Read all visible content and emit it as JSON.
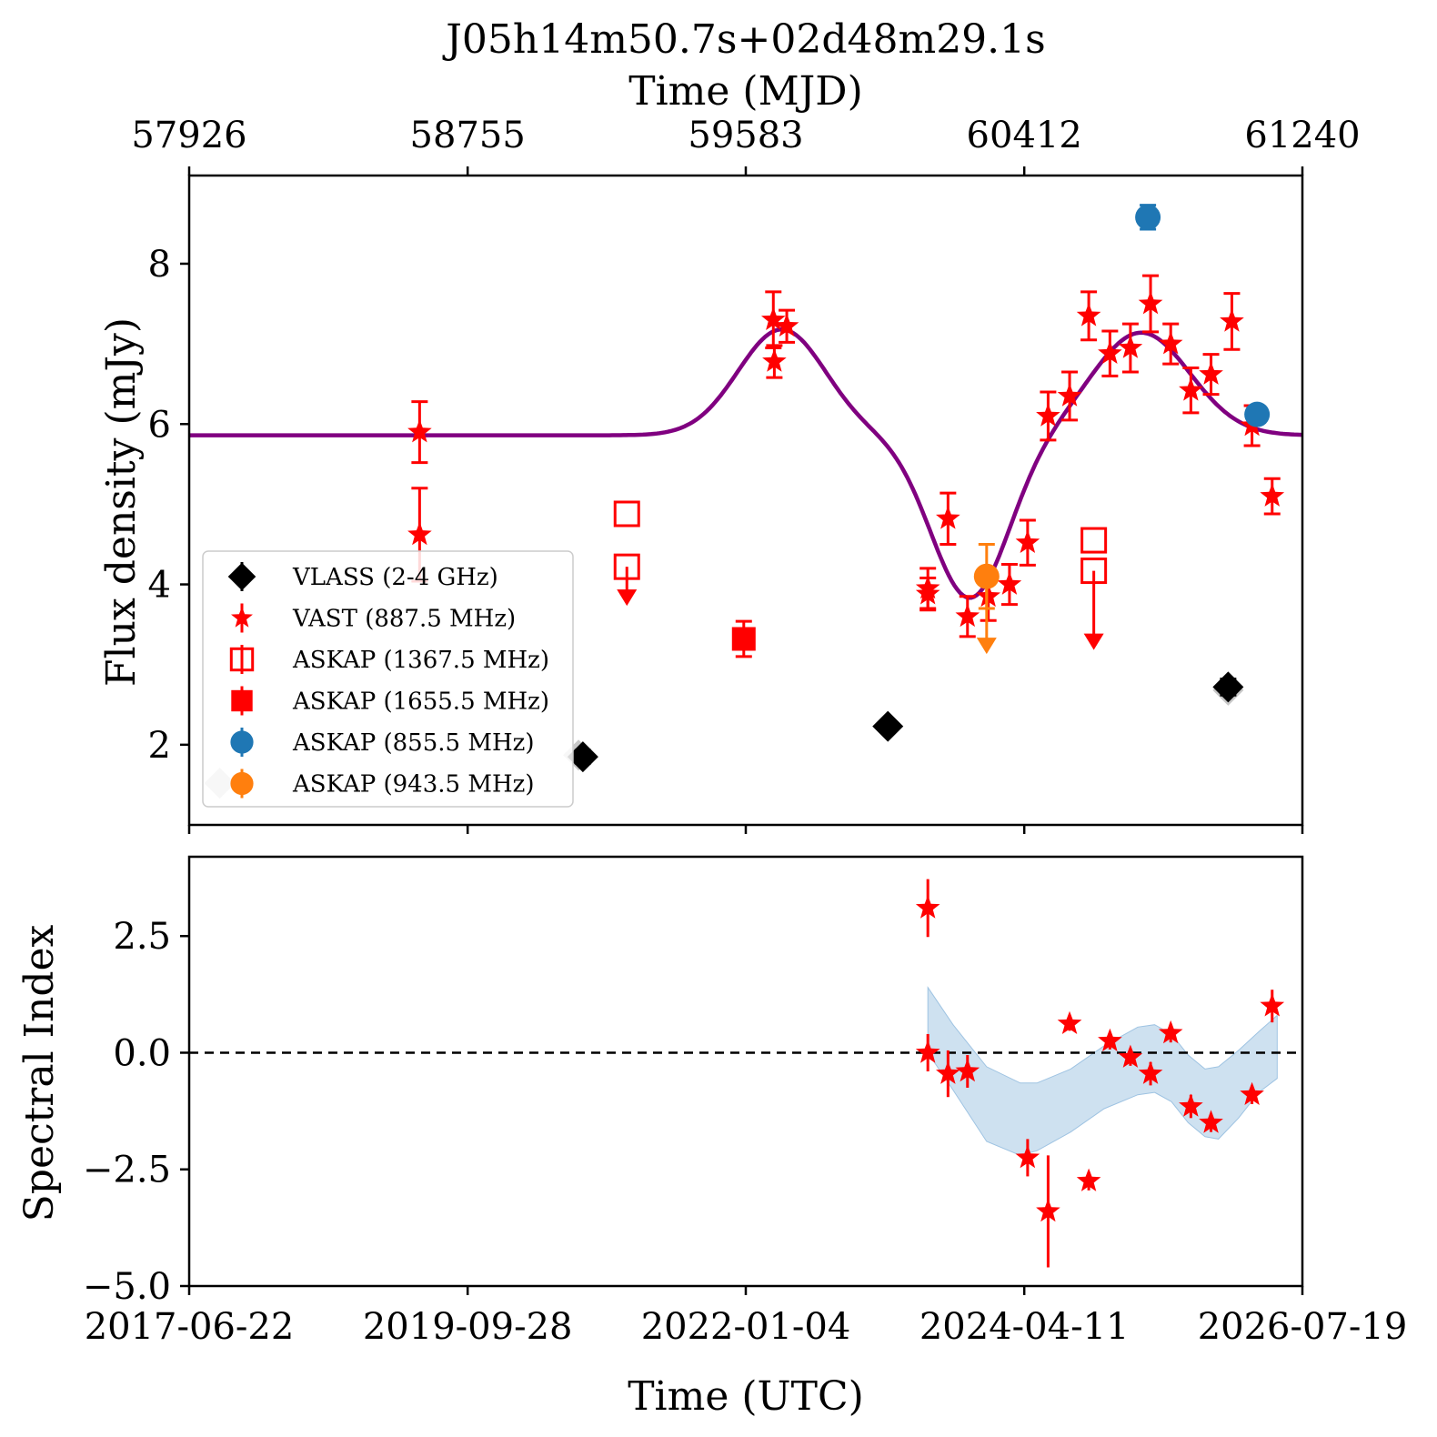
{
  "chart_data": [
    {
      "type": "scatter",
      "title": "J05h14m50.7s+02d48m29.1s",
      "top_xlabel": "Time (MJD)",
      "top_xticks": [
        "57926",
        "58755",
        "59583",
        "60412",
        "61240"
      ],
      "top_xtick_values": [
        57926,
        58755,
        59583,
        60412,
        61240
      ],
      "ylabel": "Flux density (mJy)",
      "yticks": [
        "2",
        "4",
        "6",
        "8"
      ],
      "ytick_values": [
        2,
        4,
        6,
        8
      ],
      "xlim_mjd": [
        57926,
        61240
      ],
      "ylim": [
        1.0,
        9.1
      ],
      "legend_position": "lower-left",
      "legend": [
        {
          "label": "VLASS (2-4 GHz)",
          "marker": "diamond",
          "color": "#000000",
          "filled": true
        },
        {
          "label": "VAST (887.5 MHz)",
          "marker": "star",
          "color": "#ff0000",
          "filled": true
        },
        {
          "label": "ASKAP (1367.5 MHz)",
          "marker": "square",
          "color": "#ff0000",
          "filled": false
        },
        {
          "label": "ASKAP (1655.5 MHz)",
          "marker": "square",
          "color": "#ff0000",
          "filled": true
        },
        {
          "label": "ASKAP (855.5 MHz)",
          "marker": "circle",
          "color": "#1f77b4",
          "filled": true
        },
        {
          "label": "ASKAP (943.5 MHz)",
          "marker": "circle",
          "color": "#ff7f0e",
          "filled": true
        }
      ],
      "series": [
        {
          "name": "VLASS (2-4 GHz)",
          "marker": "diamond",
          "color": "#000000",
          "points": [
            {
              "x": 59098,
              "y": 1.85,
              "err": 0.08
            },
            {
              "x": 60006,
              "y": 2.23,
              "err": 0.05
            },
            {
              "x": 61019,
              "y": 2.72,
              "err": 0.1
            }
          ],
          "ghost_points": [
            {
              "x": 58017,
              "y": 1.52,
              "err": 0.05
            },
            {
              "x": 59085,
              "y": 1.87,
              "err": 0.05
            },
            {
              "x": 61019,
              "y": 2.68,
              "err": 0.05
            }
          ],
          "ghost_color": "#c8c8c8"
        },
        {
          "name": "VAST (887.5 MHz)",
          "marker": "star",
          "color": "#ff0000",
          "points": [
            {
              "x": 58612,
              "y": 5.9,
              "err": 0.38
            },
            {
              "x": 58612,
              "y": 4.62,
              "err": 0.58
            },
            {
              "x": 59665,
              "y": 7.3,
              "err": 0.35
            },
            {
              "x": 59668,
              "y": 6.78,
              "err": 0.2
            },
            {
              "x": 59705,
              "y": 7.22,
              "err": 0.2
            },
            {
              "x": 60125,
              "y": 3.95,
              "err": 0.25
            },
            {
              "x": 60125,
              "y": 3.88,
              "err": 0.2
            },
            {
              "x": 60185,
              "y": 4.82,
              "err": 0.32
            },
            {
              "x": 60243,
              "y": 3.6,
              "err": 0.25
            },
            {
              "x": 60305,
              "y": 3.85,
              "err": 0.3
            },
            {
              "x": 60368,
              "y": 4.0,
              "err": 0.25
            },
            {
              "x": 60422,
              "y": 4.52,
              "err": 0.28
            },
            {
              "x": 60483,
              "y": 6.1,
              "err": 0.3
            },
            {
              "x": 60547,
              "y": 6.35,
              "err": 0.3
            },
            {
              "x": 60604,
              "y": 7.35,
              "err": 0.3
            },
            {
              "x": 60667,
              "y": 6.88,
              "err": 0.28
            },
            {
              "x": 60728,
              "y": 6.95,
              "err": 0.3
            },
            {
              "x": 60788,
              "y": 7.5,
              "err": 0.35
            },
            {
              "x": 60848,
              "y": 7.0,
              "err": 0.25
            },
            {
              "x": 60908,
              "y": 6.42,
              "err": 0.28
            },
            {
              "x": 60968,
              "y": 6.62,
              "err": 0.25
            },
            {
              "x": 61030,
              "y": 7.28,
              "err": 0.35
            },
            {
              "x": 61090,
              "y": 5.98,
              "err": 0.25
            },
            {
              "x": 61150,
              "y": 5.1,
              "err": 0.22
            }
          ]
        },
        {
          "name": "ASKAP (1367.5 MHz)",
          "marker": "square-open",
          "color": "#ff0000",
          "points": [
            {
              "x": 59229,
              "y": 4.88,
              "upper_limit": false
            },
            {
              "x": 59229,
              "y": 4.22,
              "upper_limit": true,
              "arrow_to": 3.8
            },
            {
              "x": 60619,
              "y": 4.55,
              "upper_limit": false
            },
            {
              "x": 60619,
              "y": 4.17,
              "upper_limit": true,
              "arrow_to": 3.25
            }
          ]
        },
        {
          "name": "ASKAP (1655.5 MHz)",
          "marker": "square",
          "color": "#ff0000",
          "points": [
            {
              "x": 59577,
              "y": 3.32,
              "err": 0.22
            }
          ]
        },
        {
          "name": "ASKAP (855.5 MHz)",
          "marker": "circle",
          "color": "#1f77b4",
          "points": [
            {
              "x": 60780,
              "y": 8.58,
              "err": 0.15
            },
            {
              "x": 61105,
              "y": 6.12,
              "err": 0.1
            }
          ]
        },
        {
          "name": "ASKAP (943.5 MHz)",
          "marker": "circle",
          "color": "#ff7f0e",
          "points": [
            {
              "x": 60300,
              "y": 4.1,
              "err": 0.4,
              "upper_limit": true,
              "arrow_to": 3.2
            }
          ]
        }
      ],
      "model_curve": {
        "color": "#800080",
        "baseline": 5.86,
        "components": [
          {
            "center": 59690,
            "width": 130,
            "amp": 1.32
          },
          {
            "center": 60250,
            "width": 115,
            "amp": -2.03
          },
          {
            "center": 60760,
            "width": 145,
            "amp": 1.28
          }
        ]
      }
    },
    {
      "type": "scatter",
      "xlabel": "Time (UTC)",
      "xticks": [
        "2017-06-22",
        "2019-09-28",
        "2022-01-04",
        "2024-04-11",
        "2026-07-19"
      ],
      "xtick_values_mjd": [
        57926,
        58755,
        59583,
        60412,
        61240
      ],
      "ylabel": "Spectral Index",
      "yticks": [
        "2.5",
        "0.0",
        "−2.5",
        "−5.0"
      ],
      "ytick_values": [
        2.5,
        0.0,
        -2.5,
        -5.0
      ],
      "ylim": [
        -5.0,
        4.2
      ],
      "reference_line": {
        "y": 0.0,
        "style": "dashed",
        "color": "#000000"
      },
      "series": [
        {
          "marker": "star",
          "color": "#ff0000",
          "points": [
            {
              "x": 60125,
              "y": 3.1,
              "err": 0.62
            },
            {
              "x": 60125,
              "y": 0.0,
              "err": 0.4
            },
            {
              "x": 60185,
              "y": -0.45,
              "err": 0.5
            },
            {
              "x": 60243,
              "y": -0.4,
              "err": 0.35
            },
            {
              "x": 60422,
              "y": -2.25,
              "err": 0.4
            },
            {
              "x": 60483,
              "y": -3.4,
              "err": 1.2
            },
            {
              "x": 60547,
              "y": 0.62,
              "err": 0.15
            },
            {
              "x": 60604,
              "y": -2.75,
              "err": 0.2
            },
            {
              "x": 60667,
              "y": 0.25,
              "err": 0.18
            },
            {
              "x": 60728,
              "y": -0.1,
              "err": 0.18
            },
            {
              "x": 60788,
              "y": -0.45,
              "err": 0.25
            },
            {
              "x": 60848,
              "y": 0.42,
              "err": 0.2
            },
            {
              "x": 60908,
              "y": -1.15,
              "err": 0.25
            },
            {
              "x": 60968,
              "y": -1.5,
              "err": 0.2
            },
            {
              "x": 61090,
              "y": -0.9,
              "err": 0.2
            },
            {
              "x": 61150,
              "y": 1.0,
              "err": 0.35
            }
          ]
        }
      ],
      "band": {
        "color": "#9ec3e2",
        "x": [
          60125,
          60200,
          60300,
          60400,
          60450,
          60550,
          60650,
          60750,
          60800,
          60850,
          60900,
          60950,
          60990,
          61050,
          61110,
          61165
        ],
        "upper": [
          1.4,
          0.6,
          -0.3,
          -0.65,
          -0.65,
          -0.35,
          0.15,
          0.55,
          0.6,
          0.4,
          -0.05,
          -0.35,
          -0.3,
          0.05,
          0.45,
          0.8
        ],
        "lower": [
          0.0,
          -0.8,
          -1.9,
          -2.2,
          -2.1,
          -1.7,
          -1.2,
          -0.9,
          -0.85,
          -1.05,
          -1.5,
          -1.8,
          -1.85,
          -1.4,
          -0.85,
          -0.55
        ]
      }
    }
  ]
}
